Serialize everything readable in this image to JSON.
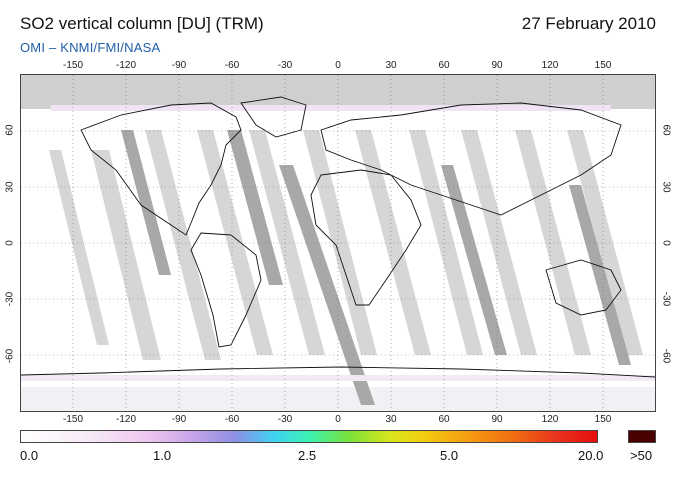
{
  "header": {
    "title": "SO2 vertical column [DU] (TRM)",
    "date": "27 February 2010",
    "credit": "OMI  –  KNMI/FMI/NASA"
  },
  "map": {
    "projection": "equirectangular",
    "lon_range": [
      -180,
      180
    ],
    "lat_range": [
      -90,
      90
    ],
    "lon_ticks": [
      "-150",
      "-120",
      "-90",
      "-60",
      "-30",
      "0",
      "30",
      "60",
      "90",
      "120",
      "150"
    ],
    "lat_ticks": [
      "60",
      "30",
      "0",
      "-30",
      "-60"
    ],
    "grid": "dotted",
    "orbit_gap_color": "#d6d6d6",
    "dark_strip_color": "#a8a8a8",
    "no_data_color": "#cfcfcf"
  },
  "colorbar": {
    "labels": [
      "0.0",
      "1.0",
      "2.5",
      "5.0",
      "20.0"
    ],
    "overflow_label": ">50",
    "overflow_color": "#4a0000"
  }
}
